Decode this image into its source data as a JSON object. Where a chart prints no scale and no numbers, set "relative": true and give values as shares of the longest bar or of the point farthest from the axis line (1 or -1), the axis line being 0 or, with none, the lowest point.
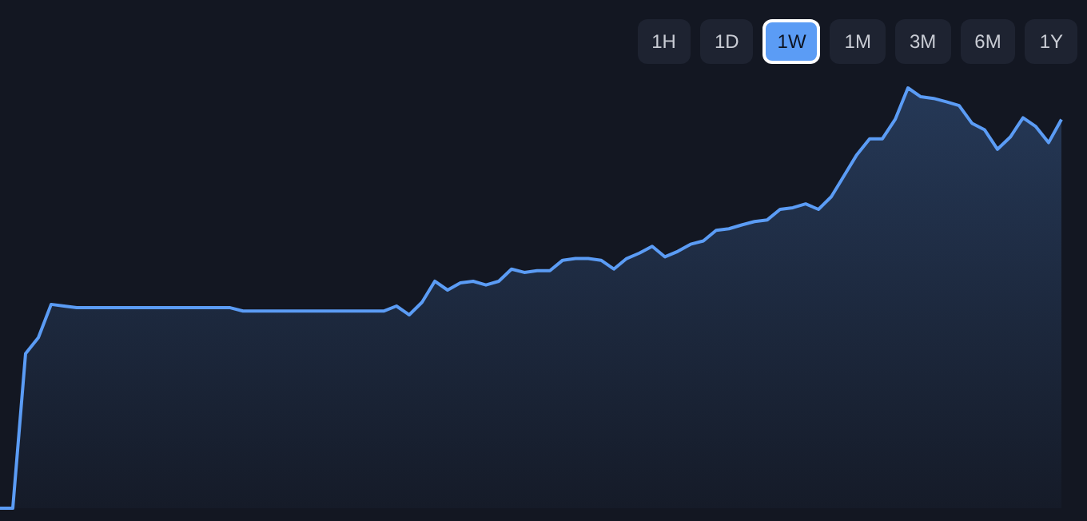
{
  "chart_data": {
    "type": "area",
    "relative": true,
    "legend": false,
    "categories": [
      null,
      null,
      null,
      null,
      null,
      null,
      null,
      null,
      null,
      null,
      null,
      null,
      null,
      null,
      null,
      null,
      null,
      null,
      null,
      null,
      null,
      null,
      null,
      null,
      null,
      null,
      null,
      null,
      null,
      null,
      null,
      null,
      null,
      null,
      null,
      null,
      null,
      null,
      null,
      null,
      null,
      null,
      null,
      null,
      null,
      null,
      null,
      null,
      null,
      null,
      null,
      null,
      null,
      null,
      null,
      null,
      null,
      null,
      null,
      null,
      null,
      null,
      null,
      null,
      null,
      null,
      null,
      null,
      null,
      null,
      null,
      null,
      null,
      null,
      null,
      null,
      null,
      null,
      null,
      null,
      null,
      null,
      null,
      null
    ],
    "series": [
      {
        "color": "#5b9cf5",
        "values": [
          0,
          0,
          0.368,
          0.406,
          0.485,
          0.481,
          0.477,
          0.477,
          0.477,
          0.477,
          0.477,
          0.477,
          0.477,
          0.477,
          0.477,
          0.477,
          0.477,
          0.477,
          0.477,
          0.469,
          0.469,
          0.469,
          0.469,
          0.469,
          0.469,
          0.469,
          0.469,
          0.469,
          0.469,
          0.469,
          0.469,
          0.481,
          0.46,
          0.49,
          0.54,
          0.519,
          0.536,
          0.54,
          0.531,
          0.54,
          0.569,
          0.561,
          0.565,
          0.565,
          0.59,
          0.594,
          0.594,
          0.59,
          0.569,
          0.594,
          0.607,
          0.623,
          0.598,
          0.611,
          0.628,
          0.636,
          0.661,
          0.665,
          0.674,
          0.682,
          0.686,
          0.711,
          0.715,
          0.724,
          0.711,
          0.741,
          0.791,
          0.841,
          0.879,
          0.879,
          0.925,
          1,
          0.979,
          0.975,
          0.967,
          0.958,
          0.916,
          0.9,
          0.854,
          0.883,
          0.929,
          0.908,
          0.87,
          0.925
        ]
      }
    ],
    "annotations": [
      "1H",
      "1D",
      "1W",
      "1M",
      "3M",
      "6M",
      "1Y"
    ]
  }
}
